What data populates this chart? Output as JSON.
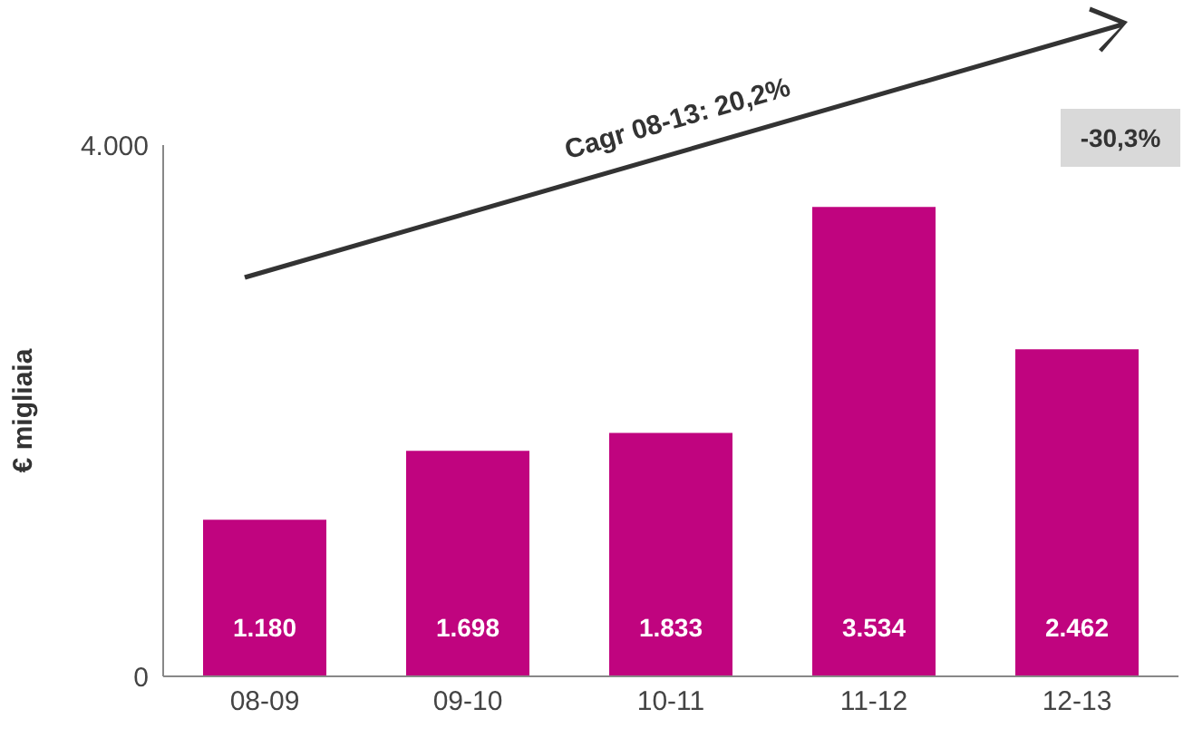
{
  "chart_data": {
    "type": "bar",
    "ylabel": "€ migliaia",
    "categories": [
      "08-09",
      "09-10",
      "10-11",
      "11-12",
      "12-13"
    ],
    "values": [
      1180,
      1698,
      1833,
      3534,
      2462
    ],
    "value_labels": [
      "1.180",
      "1.698",
      "1.833",
      "3.534",
      "2.462"
    ],
    "color": "#c0047f",
    "ylim": [
      0,
      4000
    ],
    "yticks": [
      0,
      {
        "value": 4000,
        "label": "4.000"
      }
    ],
    "grid": false,
    "legend": false,
    "annotations": [
      "Cagr 08-13: 20,2%",
      "-30,3%"
    ]
  }
}
